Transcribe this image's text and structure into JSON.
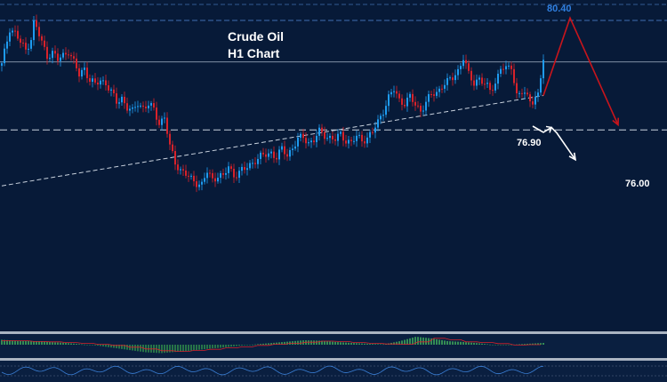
{
  "chart_data": {
    "type": "candlestick",
    "title": "Crude Oil",
    "subtitle": "H1 Chart",
    "price_range": [
      73.7,
      80.55
    ],
    "levels": [
      {
        "label": "80.40",
        "value": 80.4,
        "color": "#2f7fe0"
      },
      {
        "label": "76.90",
        "value": 76.9
      },
      {
        "label": "76.00",
        "value": 76.0
      }
    ],
    "reference_line": 78.73,
    "trendline": {
      "start": [
        0,
        73.75
      ],
      "end": [
        203,
        77.38
      ]
    },
    "close_path": [
      [
        0,
        78.6
      ],
      [
        2,
        79.6
      ],
      [
        3,
        80.1
      ],
      [
        5,
        79.9
      ],
      [
        7,
        79.5
      ],
      [
        9,
        79.2
      ],
      [
        11,
        79.7
      ],
      [
        12,
        80.3
      ],
      [
        13,
        80.1
      ],
      [
        15,
        79.5
      ],
      [
        17,
        79.0
      ],
      [
        19,
        79.1
      ],
      [
        21,
        78.8
      ],
      [
        23,
        79.0
      ],
      [
        25,
        79.2
      ],
      [
        27,
        78.7
      ],
      [
        29,
        78.2
      ],
      [
        31,
        78.5
      ],
      [
        33,
        78.0
      ],
      [
        35,
        77.8
      ],
      [
        37,
        78.0
      ],
      [
        39,
        77.9
      ],
      [
        41,
        77.5
      ],
      [
        43,
        77.1
      ],
      [
        45,
        77.3
      ],
      [
        47,
        76.9
      ],
      [
        49,
        76.7
      ],
      [
        51,
        77.1
      ],
      [
        53,
        76.9
      ],
      [
        55,
        77.0
      ],
      [
        57,
        76.8
      ],
      [
        59,
        76.3
      ],
      [
        61,
        76.5
      ],
      [
        63,
        75.3
      ],
      [
        65,
        74.7
      ],
      [
        67,
        74.4
      ],
      [
        69,
        74.2
      ],
      [
        71,
        74.0
      ],
      [
        73,
        73.9
      ],
      [
        75,
        73.8
      ],
      [
        77,
        74.3
      ],
      [
        79,
        74.0
      ],
      [
        81,
        74.2
      ],
      [
        83,
        74.1
      ],
      [
        85,
        74.5
      ],
      [
        87,
        74.2
      ],
      [
        89,
        74.3
      ],
      [
        91,
        74.4
      ],
      [
        93,
        74.6
      ],
      [
        95,
        74.8
      ],
      [
        97,
        74.9
      ],
      [
        99,
        75.0
      ],
      [
        101,
        75.1
      ],
      [
        103,
        74.9
      ],
      [
        105,
        75.2
      ],
      [
        107,
        75.0
      ],
      [
        109,
        75.3
      ],
      [
        111,
        75.6
      ],
      [
        113,
        75.7
      ],
      [
        115,
        75.5
      ],
      [
        117,
        75.6
      ],
      [
        119,
        75.9
      ],
      [
        121,
        75.8
      ],
      [
        123,
        75.7
      ],
      [
        125,
        75.6
      ],
      [
        127,
        75.8
      ],
      [
        129,
        75.6
      ],
      [
        131,
        75.5
      ],
      [
        133,
        75.7
      ],
      [
        135,
        75.6
      ],
      [
        137,
        75.7
      ],
      [
        139,
        75.9
      ],
      [
        141,
        76.3
      ],
      [
        143,
        76.8
      ],
      [
        145,
        77.3
      ],
      [
        147,
        77.6
      ],
      [
        149,
        77.2
      ],
      [
        151,
        77.1
      ],
      [
        153,
        77.3
      ],
      [
        155,
        77.0
      ],
      [
        157,
        76.8
      ],
      [
        159,
        77.1
      ],
      [
        161,
        77.4
      ],
      [
        163,
        77.5
      ],
      [
        165,
        77.8
      ],
      [
        167,
        77.9
      ],
      [
        169,
        78.1
      ],
      [
        171,
        78.4
      ],
      [
        173,
        78.9
      ],
      [
        175,
        78.2
      ],
      [
        177,
        77.9
      ],
      [
        179,
        78.1
      ],
      [
        181,
        77.8
      ],
      [
        183,
        77.6
      ],
      [
        185,
        77.9
      ],
      [
        187,
        78.5
      ],
      [
        189,
        78.4
      ],
      [
        191,
        78.6
      ],
      [
        193,
        77.4
      ],
      [
        195,
        77.5
      ],
      [
        197,
        77.3
      ],
      [
        199,
        77.2
      ],
      [
        201,
        77.4
      ],
      [
        203,
        78.8
      ]
    ],
    "projection_scenarios": [
      {
        "name": "bullish",
        "color": "#c8151c",
        "path": [
          [
            203,
            77.38
          ],
          [
            213,
            80.5
          ],
          [
            231,
            76.2
          ]
        ]
      },
      {
        "name": "bearish",
        "color": "#ffffff",
        "path": [
          [
            199,
            76.15
          ],
          [
            203,
            75.9
          ],
          [
            206,
            76.1
          ],
          [
            208,
            75.88
          ],
          [
            215,
            74.8
          ]
        ]
      }
    ],
    "macd": {
      "values": [
        0.55,
        0.45,
        0.4,
        0.3,
        0.2,
        0.05,
        -0.1,
        -0.35,
        -0.6,
        -0.85,
        -0.95,
        -0.8,
        -0.65,
        -0.45,
        -0.3,
        -0.1,
        0.05,
        0.2,
        0.35,
        0.5,
        0.45,
        0.3,
        0.2,
        0.1,
        0.05,
        0.4,
        0.9,
        0.7,
        0.4,
        0.3,
        0.15,
        -0.05,
        0.0,
        0.1,
        0.2
      ]
    }
  }
}
